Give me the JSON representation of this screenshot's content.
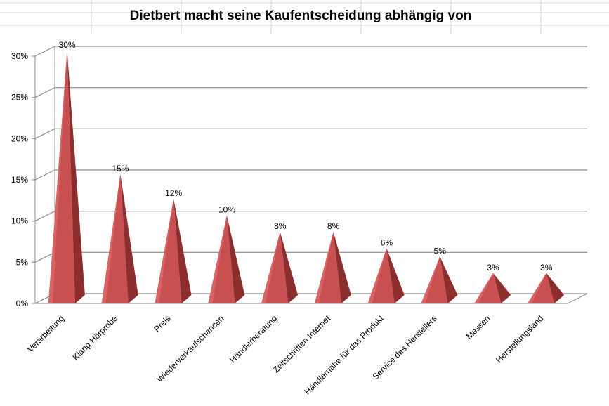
{
  "colors": {
    "pyramid_front": "#c85050",
    "pyramid_side": "#8c2e2e",
    "pyramid_light": "#d96262",
    "gridline": "#8c8c8c",
    "sheet_grid": "#d4d4d4"
  },
  "chart_data": {
    "type": "bar",
    "shape": "pyramid-3d",
    "title": "Dietbert macht seine Kaufentscheidung abhängig von",
    "xlabel": "",
    "ylabel": "",
    "ylim": [
      0,
      30
    ],
    "yticks": [
      0,
      5,
      10,
      15,
      20,
      25,
      30
    ],
    "ytick_labels": [
      "0%",
      "5%",
      "10%",
      "15%",
      "20%",
      "25%",
      "30%"
    ],
    "grid": true,
    "legend": "none",
    "categories": [
      "Verarbeitung",
      "Klang Hörprobe",
      "Preis",
      "Wiederverkaufschancen",
      "Händlerberatung",
      "Zeitschriften Internet",
      "Händlernähe für das Produkt",
      "Service des Herstellers",
      "Messen",
      "Herstellungsland"
    ],
    "values": [
      30,
      15,
      12,
      10,
      8,
      8,
      6,
      5,
      3,
      3
    ],
    "value_labels": [
      "30%",
      "15%",
      "12%",
      "10%",
      "8%",
      "8%",
      "6%",
      "5%",
      "3%",
      "3%"
    ]
  }
}
